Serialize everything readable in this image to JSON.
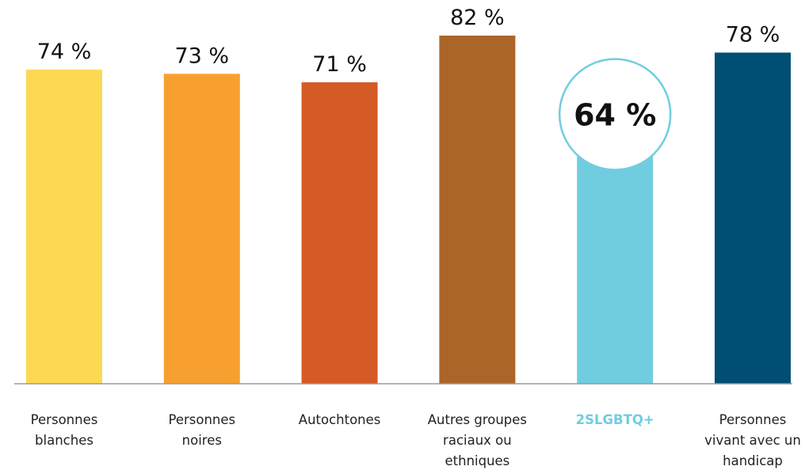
{
  "chart_data": {
    "type": "bar",
    "categories": [
      "Personnes blanches",
      "Personnes noires",
      "Autochtones",
      "Autres groupes raciaux ou ethniques",
      "2SLGBTQ+",
      "Personnes vivant avec un handicap"
    ],
    "values": [
      74,
      73,
      71,
      82,
      64,
      78
    ],
    "value_labels": [
      "74 %",
      "73 %",
      "71 %",
      "82 %",
      "64 %",
      "78 %"
    ],
    "colors": [
      "#fdd853",
      "#f7a030",
      "#d65a26",
      "#ac6529",
      "#70cde0",
      "#004e73"
    ],
    "highlight_index": 4
  }
}
